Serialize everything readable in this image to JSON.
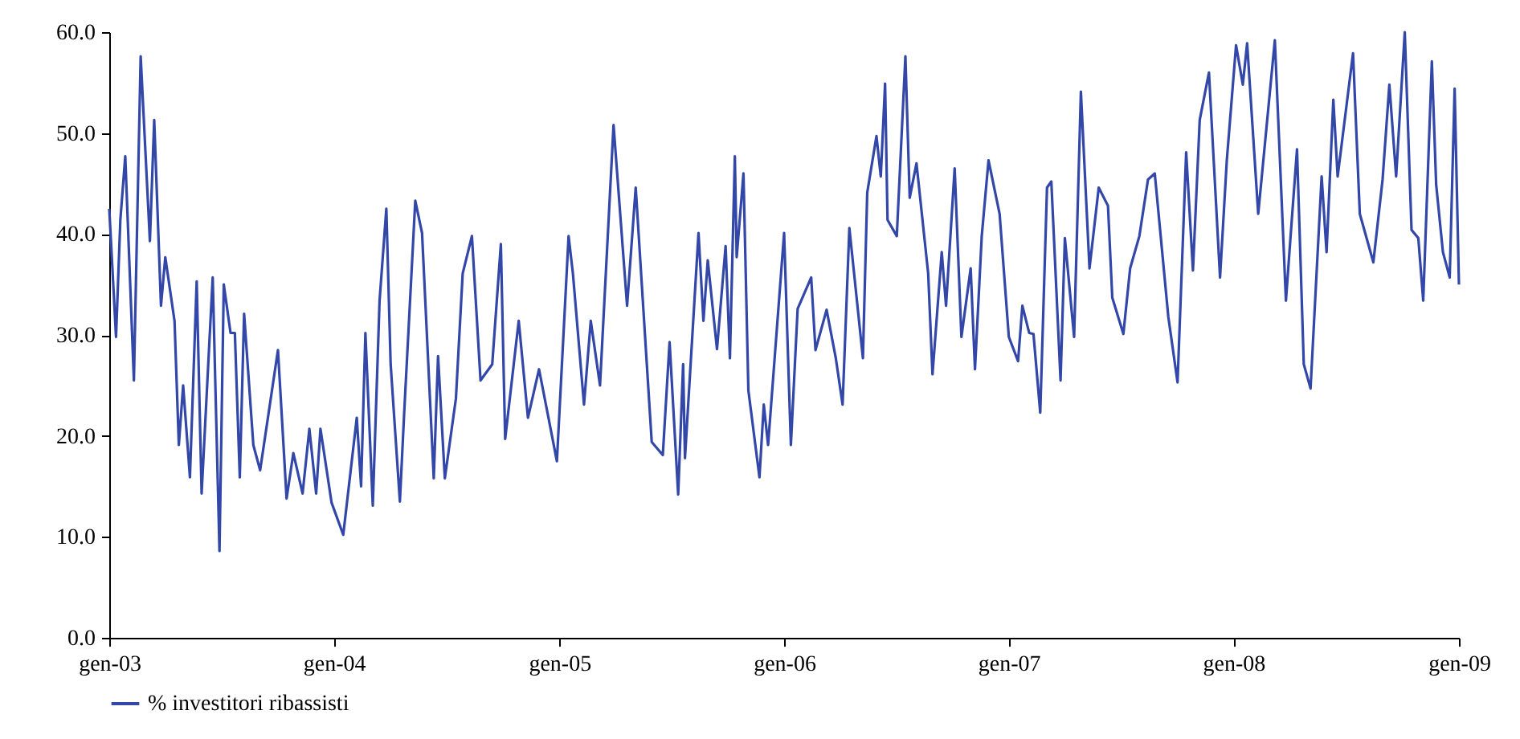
{
  "chart_data": {
    "type": "line",
    "legend": "bottom",
    "x": [
      "2003-01-01",
      "2003-01-12",
      "2003-01-19",
      "2003-01-27",
      "2003-02-10",
      "2003-02-21",
      "2003-03-08",
      "2003-03-15",
      "2003-03-26",
      "2003-04-02",
      "2003-04-17",
      "2003-04-24",
      "2003-05-01",
      "2003-05-12",
      "2003-05-23",
      "2003-05-31",
      "2003-06-18",
      "2003-06-29",
      "2003-07-06",
      "2003-07-17",
      "2003-07-24",
      "2003-08-01",
      "2003-08-08",
      "2003-08-23",
      "2003-09-03",
      "2003-10-02",
      "2003-10-16",
      "2003-10-27",
      "2003-11-11",
      "2003-11-22",
      "2003-12-03",
      "2003-12-10",
      "2003-12-28",
      "2004-01-16",
      "2004-02-07",
      "2004-02-14",
      "2004-02-21",
      "2004-03-04",
      "2004-03-15",
      "2004-03-26",
      "2004-04-02",
      "2004-04-17",
      "2004-04-24",
      "2004-05-12",
      "2004-05-23",
      "2004-06-11",
      "2004-06-18",
      "2004-06-29",
      "2004-07-17",
      "2004-07-28",
      "2004-08-12",
      "2004-08-26",
      "2004-09-14",
      "2004-09-28",
      "2004-10-05",
      "2004-10-27",
      "2004-11-11",
      "2004-11-29",
      "2004-12-28",
      "2005-01-16",
      "2005-01-23",
      "2005-02-10",
      "2005-02-21",
      "2005-03-08",
      "2005-03-30",
      "2005-04-21",
      "2005-05-05",
      "2005-05-31",
      "2005-06-18",
      "2005-06-29",
      "2005-07-13",
      "2005-07-21",
      "2005-07-24",
      "2005-08-15",
      "2005-08-23",
      "2005-08-30",
      "2005-09-14",
      "2005-09-28",
      "2005-10-05",
      "2005-10-13",
      "2005-10-16",
      "2005-10-27",
      "2005-11-04",
      "2005-11-22",
      "2005-11-29",
      "2005-12-06",
      "2006-01-01",
      "2006-01-12",
      "2006-01-23",
      "2006-02-14",
      "2006-02-21",
      "2006-03-11",
      "2006-03-26",
      "2006-04-06",
      "2006-04-17",
      "2006-05-09",
      "2006-05-16",
      "2006-05-31",
      "2006-06-07",
      "2006-06-14",
      "2006-06-18",
      "2006-07-03",
      "2006-07-17",
      "2006-07-24",
      "2006-08-04",
      "2006-08-23",
      "2006-08-30",
      "2006-09-14",
      "2006-09-21",
      "2006-10-05",
      "2006-10-16",
      "2006-10-31",
      "2006-11-07",
      "2006-11-18",
      "2006-11-29",
      "2006-12-17",
      "2007-01-01",
      "2007-01-16",
      "2007-01-23",
      "2007-02-03",
      "2007-02-10",
      "2007-02-21",
      "2007-03-04",
      "2007-03-11",
      "2007-03-26",
      "2007-04-02",
      "2007-04-17",
      "2007-04-28",
      "2007-05-12",
      "2007-05-27",
      "2007-06-11",
      "2007-06-18",
      "2007-07-06",
      "2007-07-17",
      "2007-08-01",
      "2007-08-15",
      "2007-08-26",
      "2007-09-17",
      "2007-10-02",
      "2007-10-16",
      "2007-10-27",
      "2007-11-07",
      "2007-11-22",
      "2007-12-10",
      "2007-12-21",
      "2008-01-05",
      "2008-01-16",
      "2008-01-23",
      "2008-02-10",
      "2008-03-08",
      "2008-03-26",
      "2008-04-02",
      "2008-04-13",
      "2008-04-24",
      "2008-05-05",
      "2008-05-23",
      "2008-05-31",
      "2008-06-11",
      "2008-06-18",
      "2008-07-13",
      "2008-07-24",
      "2008-08-15",
      "2008-08-30",
      "2008-09-10",
      "2008-09-21",
      "2008-10-05",
      "2008-10-16",
      "2008-10-27",
      "2008-11-04",
      "2008-11-18",
      "2008-11-25",
      "2008-12-06",
      "2008-12-17",
      "2008-12-25",
      "2009-01-01"
    ],
    "series": [
      {
        "name": "% investitori ribassisti",
        "color": "#3347a8",
        "values": [
          42.5,
          29.8,
          41.4,
          47.7,
          25.5,
          57.6,
          39.3,
          51.3,
          32.9,
          37.7,
          31.4,
          19.1,
          25,
          15.9,
          35.3,
          14.3,
          35.7,
          8.6,
          35,
          30.2,
          30.2,
          15.9,
          32.1,
          19.1,
          16.6,
          28.5,
          13.8,
          18.3,
          14.3,
          20.7,
          14.3,
          20.7,
          13.4,
          10.2,
          21.8,
          15,
          30.2,
          13.1,
          33.4,
          42.5,
          27.1,
          13.5,
          22.3,
          43.3,
          40.1,
          15.8,
          27.9,
          15.8,
          23.7,
          36.1,
          39.8,
          25.5,
          27.1,
          39,
          19.7,
          31.4,
          21.8,
          26.6,
          17.5,
          39.8,
          36.1,
          23.1,
          31.4,
          25,
          50.8,
          32.9,
          44.6,
          19.4,
          18.1,
          29.3,
          14.2,
          27.1,
          17.8,
          40.1,
          31.4,
          37.4,
          28.6,
          38.8,
          27.7,
          47.7,
          37.7,
          46,
          24.5,
          15.9,
          23.1,
          19.1,
          40.1,
          19.1,
          32.6,
          35.7,
          28.5,
          32.5,
          27.7,
          23.1,
          40.6,
          27.7,
          44.1,
          49.7,
          45.7,
          54.9,
          41.4,
          39.8,
          57.6,
          43.6,
          47,
          36.1,
          26.1,
          38.2,
          32.9,
          46.5,
          29.8,
          36.6,
          26.6,
          39.8,
          47.3,
          42,
          29.8,
          27.4,
          32.9,
          30.2,
          30.1,
          22.3,
          44.6,
          45.2,
          25.5,
          39.6,
          29.8,
          54.1,
          36.6,
          44.6,
          42.8,
          33.7,
          30.1,
          36.6,
          39.8,
          45.4,
          46,
          31.8,
          25.3,
          48.1,
          36.4,
          51.3,
          56,
          35.7,
          47.3,
          58.7,
          54.8,
          58.9,
          42,
          59.2,
          33.4,
          39.3,
          48.4,
          27.1,
          24.7,
          45.7,
          38.2,
          53.3,
          45.7,
          57.9,
          42,
          37.2,
          45.4,
          54.8,
          45.7,
          60,
          40.4,
          39.6,
          33.4,
          57.1,
          44.9,
          38.2,
          35.7,
          54.4,
          35
        ]
      }
    ],
    "xlim": [
      "2003-01-01",
      "2009-01-01"
    ],
    "xticks": [
      {
        "value": "2003-01-01",
        "label": "gen-03"
      },
      {
        "value": "2004-01-01",
        "label": "gen-04"
      },
      {
        "value": "2005-01-01",
        "label": "gen-05"
      },
      {
        "value": "2006-01-01",
        "label": "gen-06"
      },
      {
        "value": "2007-01-01",
        "label": "gen-07"
      },
      {
        "value": "2008-01-01",
        "label": "gen-08"
      },
      {
        "value": "2009-01-01",
        "label": "gen-09"
      }
    ],
    "ylim": [
      0,
      60
    ],
    "yticks": [
      {
        "value": 0,
        "label": "0.0"
      },
      {
        "value": 10,
        "label": "10.0"
      },
      {
        "value": 20,
        "label": "20.0"
      },
      {
        "value": 30,
        "label": "30.0"
      },
      {
        "value": 40,
        "label": "40.0"
      },
      {
        "value": 50,
        "label": "50.0"
      },
      {
        "value": 60,
        "label": "60.0"
      }
    ]
  }
}
